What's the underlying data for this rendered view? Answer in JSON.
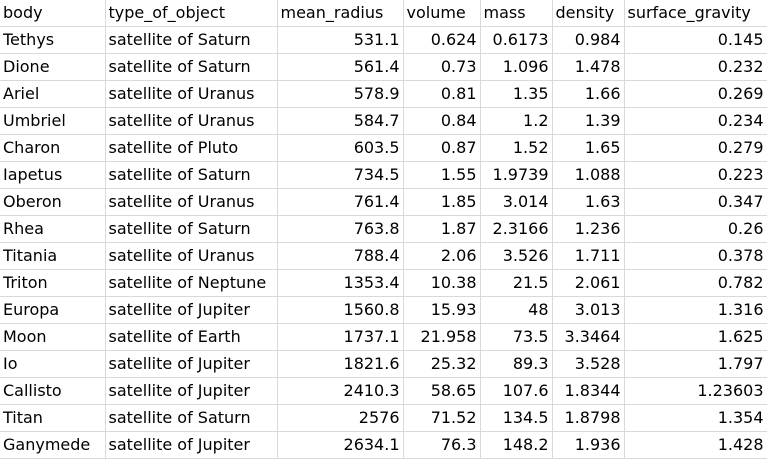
{
  "sheet": {
    "headers": [
      "body",
      "type_of_object",
      "mean_radius",
      "volume",
      "mass",
      "density",
      "surface_gravity"
    ],
    "rows": [
      [
        "Tethys",
        "satellite of Saturn",
        "531.1",
        "0.624",
        "0.6173",
        "0.984",
        "0.145"
      ],
      [
        "Dione",
        "satellite of Saturn",
        "561.4",
        "0.73",
        "1.096",
        "1.478",
        "0.232"
      ],
      [
        "Ariel",
        "satellite of Uranus",
        "578.9",
        "0.81",
        "1.35",
        "1.66",
        "0.269"
      ],
      [
        "Umbriel",
        "satellite of Uranus",
        "584.7",
        "0.84",
        "1.2",
        "1.39",
        "0.234"
      ],
      [
        "Charon",
        "satellite of Pluto",
        "603.5",
        "0.87",
        "1.52",
        "1.65",
        "0.279"
      ],
      [
        "Iapetus",
        "satellite of Saturn",
        "734.5",
        "1.55",
        "1.9739",
        "1.088",
        "0.223"
      ],
      [
        "Oberon",
        "satellite of Uranus",
        "761.4",
        "1.85",
        "3.014",
        "1.63",
        "0.347"
      ],
      [
        "Rhea",
        "satellite of Saturn",
        "763.8",
        "1.87",
        "2.3166",
        "1.236",
        "0.26"
      ],
      [
        "Titania",
        "satellite of Uranus",
        "788.4",
        "2.06",
        "3.526",
        "1.711",
        "0.378"
      ],
      [
        "Triton",
        "satellite of Neptune",
        "1353.4",
        "10.38",
        "21.5",
        "2.061",
        "0.782"
      ],
      [
        "Europa",
        "satellite of Jupiter",
        "1560.8",
        "15.93",
        "48",
        "3.013",
        "1.316"
      ],
      [
        "Moon",
        "satellite of Earth",
        "1737.1",
        "21.958",
        "73.5",
        "3.3464",
        "1.625"
      ],
      [
        "Io",
        "satellite of Jupiter",
        "1821.6",
        "25.32",
        "89.3",
        "3.528",
        "1.797"
      ],
      [
        "Callisto",
        "satellite of Jupiter",
        "2410.3",
        "58.65",
        "107.6",
        "1.8344",
        "1.23603"
      ],
      [
        "Titan",
        "satellite of Saturn",
        "2576",
        "71.52",
        "134.5",
        "1.8798",
        "1.354"
      ],
      [
        "Ganymede",
        "satellite of Jupiter",
        "2634.1",
        "76.3",
        "148.2",
        "1.936",
        "1.428"
      ]
    ]
  }
}
